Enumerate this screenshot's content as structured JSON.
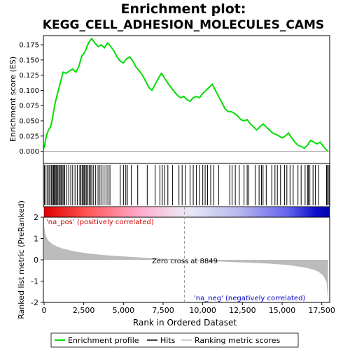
{
  "chart_data": {
    "type": "line",
    "title_line1": "Enrichment plot:",
    "title_line2": "KEGG_CELL_ADHESION_MOLECULES_CAMS",
    "es_panel": {
      "ylabel": "Enrichment score (ES)",
      "ylim": [
        -0.02,
        0.19
      ],
      "yticks": [
        0.0,
        0.025,
        0.05,
        0.075,
        0.1,
        0.125,
        0.15,
        0.175
      ],
      "ytick_labels": [
        "0.000",
        "0.025",
        "0.050",
        "0.075",
        "0.100",
        "0.125",
        "0.150",
        "0.175"
      ],
      "series_name": "Enrichment profile",
      "line_color": "#00dd00",
      "x": [
        0,
        100,
        200,
        300,
        400,
        500,
        600,
        700,
        800,
        900,
        1000,
        1100,
        1200,
        1400,
        1600,
        1800,
        2000,
        2200,
        2300,
        2400,
        2500,
        2600,
        2700,
        2800,
        2900,
        3000,
        3200,
        3400,
        3600,
        3800,
        4000,
        4200,
        4400,
        4600,
        4800,
        5000,
        5200,
        5400,
        5600,
        5800,
        6000,
        6200,
        6400,
        6600,
        6800,
        7000,
        7200,
        7400,
        7600,
        7800,
        8000,
        8200,
        8400,
        8600,
        8800,
        9000,
        9200,
        9400,
        9600,
        9800,
        10000,
        10200,
        10400,
        10600,
        10800,
        11000,
        11200,
        11400,
        11600,
        11800,
        12000,
        12200,
        12400,
        12600,
        12800,
        13000,
        13200,
        13400,
        13600,
        13800,
        14000,
        14200,
        14400,
        14600,
        14800,
        15000,
        15200,
        15400,
        15600,
        15800,
        16000,
        16200,
        16400,
        16600,
        16800,
        17000,
        17200,
        17400,
        17600,
        17800,
        17900
      ],
      "y": [
        0.005,
        0.02,
        0.03,
        0.036,
        0.04,
        0.05,
        0.065,
        0.08,
        0.09,
        0.1,
        0.11,
        0.12,
        0.13,
        0.128,
        0.132,
        0.135,
        0.13,
        0.14,
        0.15,
        0.158,
        0.16,
        0.165,
        0.172,
        0.178,
        0.182,
        0.185,
        0.178,
        0.172,
        0.175,
        0.17,
        0.178,
        0.172,
        0.165,
        0.155,
        0.148,
        0.145,
        0.152,
        0.155,
        0.148,
        0.138,
        0.132,
        0.125,
        0.115,
        0.105,
        0.1,
        0.11,
        0.12,
        0.128,
        0.12,
        0.112,
        0.105,
        0.098,
        0.092,
        0.088,
        0.09,
        0.085,
        0.082,
        0.088,
        0.09,
        0.088,
        0.095,
        0.1,
        0.105,
        0.11,
        0.1,
        0.09,
        0.08,
        0.07,
        0.065,
        0.065,
        0.062,
        0.058,
        0.052,
        0.05,
        0.052,
        0.045,
        0.04,
        0.035,
        0.04,
        0.045,
        0.04,
        0.035,
        0.03,
        0.028,
        0.025,
        0.022,
        0.025,
        0.03,
        0.022,
        0.015,
        0.01,
        0.008,
        0.005,
        0.01,
        0.018,
        0.015,
        0.012,
        0.015,
        0.008,
        0.002,
        0.0
      ]
    },
    "hits": [
      20,
      120,
      210,
      310,
      380,
      470,
      540,
      600,
      650,
      700,
      760,
      820,
      880,
      950,
      1020,
      1090,
      1150,
      1230,
      1300,
      1420,
      1550,
      1680,
      1800,
      1950,
      2100,
      2250,
      2320,
      2400,
      2470,
      2530,
      2600,
      2680,
      2760,
      2840,
      2920,
      3000,
      3100,
      3250,
      3400,
      3520,
      3650,
      3780,
      3900,
      4020,
      4150,
      4800,
      5000,
      5150,
      5250,
      5500,
      5900,
      6500,
      7000,
      7300,
      7450,
      7600,
      7800,
      8100,
      8500,
      8700,
      8900,
      9200,
      9400,
      9600,
      9800,
      10000,
      10150,
      10300,
      10500,
      10700,
      11000,
      11700,
      11850,
      12050,
      12300,
      12600,
      12800,
      12900,
      13300,
      13550,
      13700,
      13800,
      14000,
      14350,
      14550,
      14700,
      14900,
      15150,
      15300,
      15500,
      15700,
      16000,
      16200,
      16450,
      16600,
      16650,
      16750,
      16950,
      17100,
      17300,
      17800,
      17850,
      17950
    ],
    "ranked_panel": {
      "ylabel": "Ranked list metric (PreRanked)",
      "xlabel": "Rank in Ordered Dataset",
      "ylim": [
        -2,
        2
      ],
      "yticks": [
        -2,
        -1,
        0,
        1,
        2
      ],
      "ytick_labels": [
        "-2",
        "-1",
        "0",
        "1",
        "2"
      ],
      "xlim": [
        0,
        18000
      ],
      "xticks": [
        0,
        2500,
        5000,
        7500,
        10000,
        12500,
        15000,
        17500
      ],
      "xtick_labels": [
        "0",
        "2,500",
        "5,000",
        "7,500",
        "10,000",
        "12,500",
        "15,000",
        "17,500"
      ],
      "metric_x": [
        0,
        50,
        150,
        300,
        500,
        800,
        1200,
        2000,
        3000,
        4000,
        5000,
        6000,
        7000,
        8000,
        8849,
        10000,
        11000,
        12000,
        13000,
        14000,
        15000,
        15500,
        16000,
        16500,
        17000,
        17300,
        17600,
        17800,
        17900
      ],
      "metric_y": [
        1.65,
        1.3,
        1.05,
        0.88,
        0.75,
        0.63,
        0.52,
        0.38,
        0.28,
        0.21,
        0.16,
        0.11,
        0.07,
        0.03,
        0.0,
        -0.04,
        -0.08,
        -0.11,
        -0.14,
        -0.17,
        -0.22,
        -0.26,
        -0.31,
        -0.37,
        -0.47,
        -0.56,
        -0.75,
        -1.05,
        -1.9
      ],
      "zero_cross_label": "Zero cross at 8849",
      "zero_cross_x": 8849,
      "pos_label": "'na_pos' (positively correlated)",
      "neg_label": "'na_neg' (negatively correlated)",
      "pos_label_color": "#cc0000",
      "neg_label_color": "#0000cc"
    },
    "legend": {
      "items": [
        "Enrichment profile",
        "Hits",
        "Ranking metric scores"
      ],
      "colors": [
        "#00dd00",
        "#000000",
        "#bbbbbb"
      ],
      "placement": "bottom"
    }
  }
}
